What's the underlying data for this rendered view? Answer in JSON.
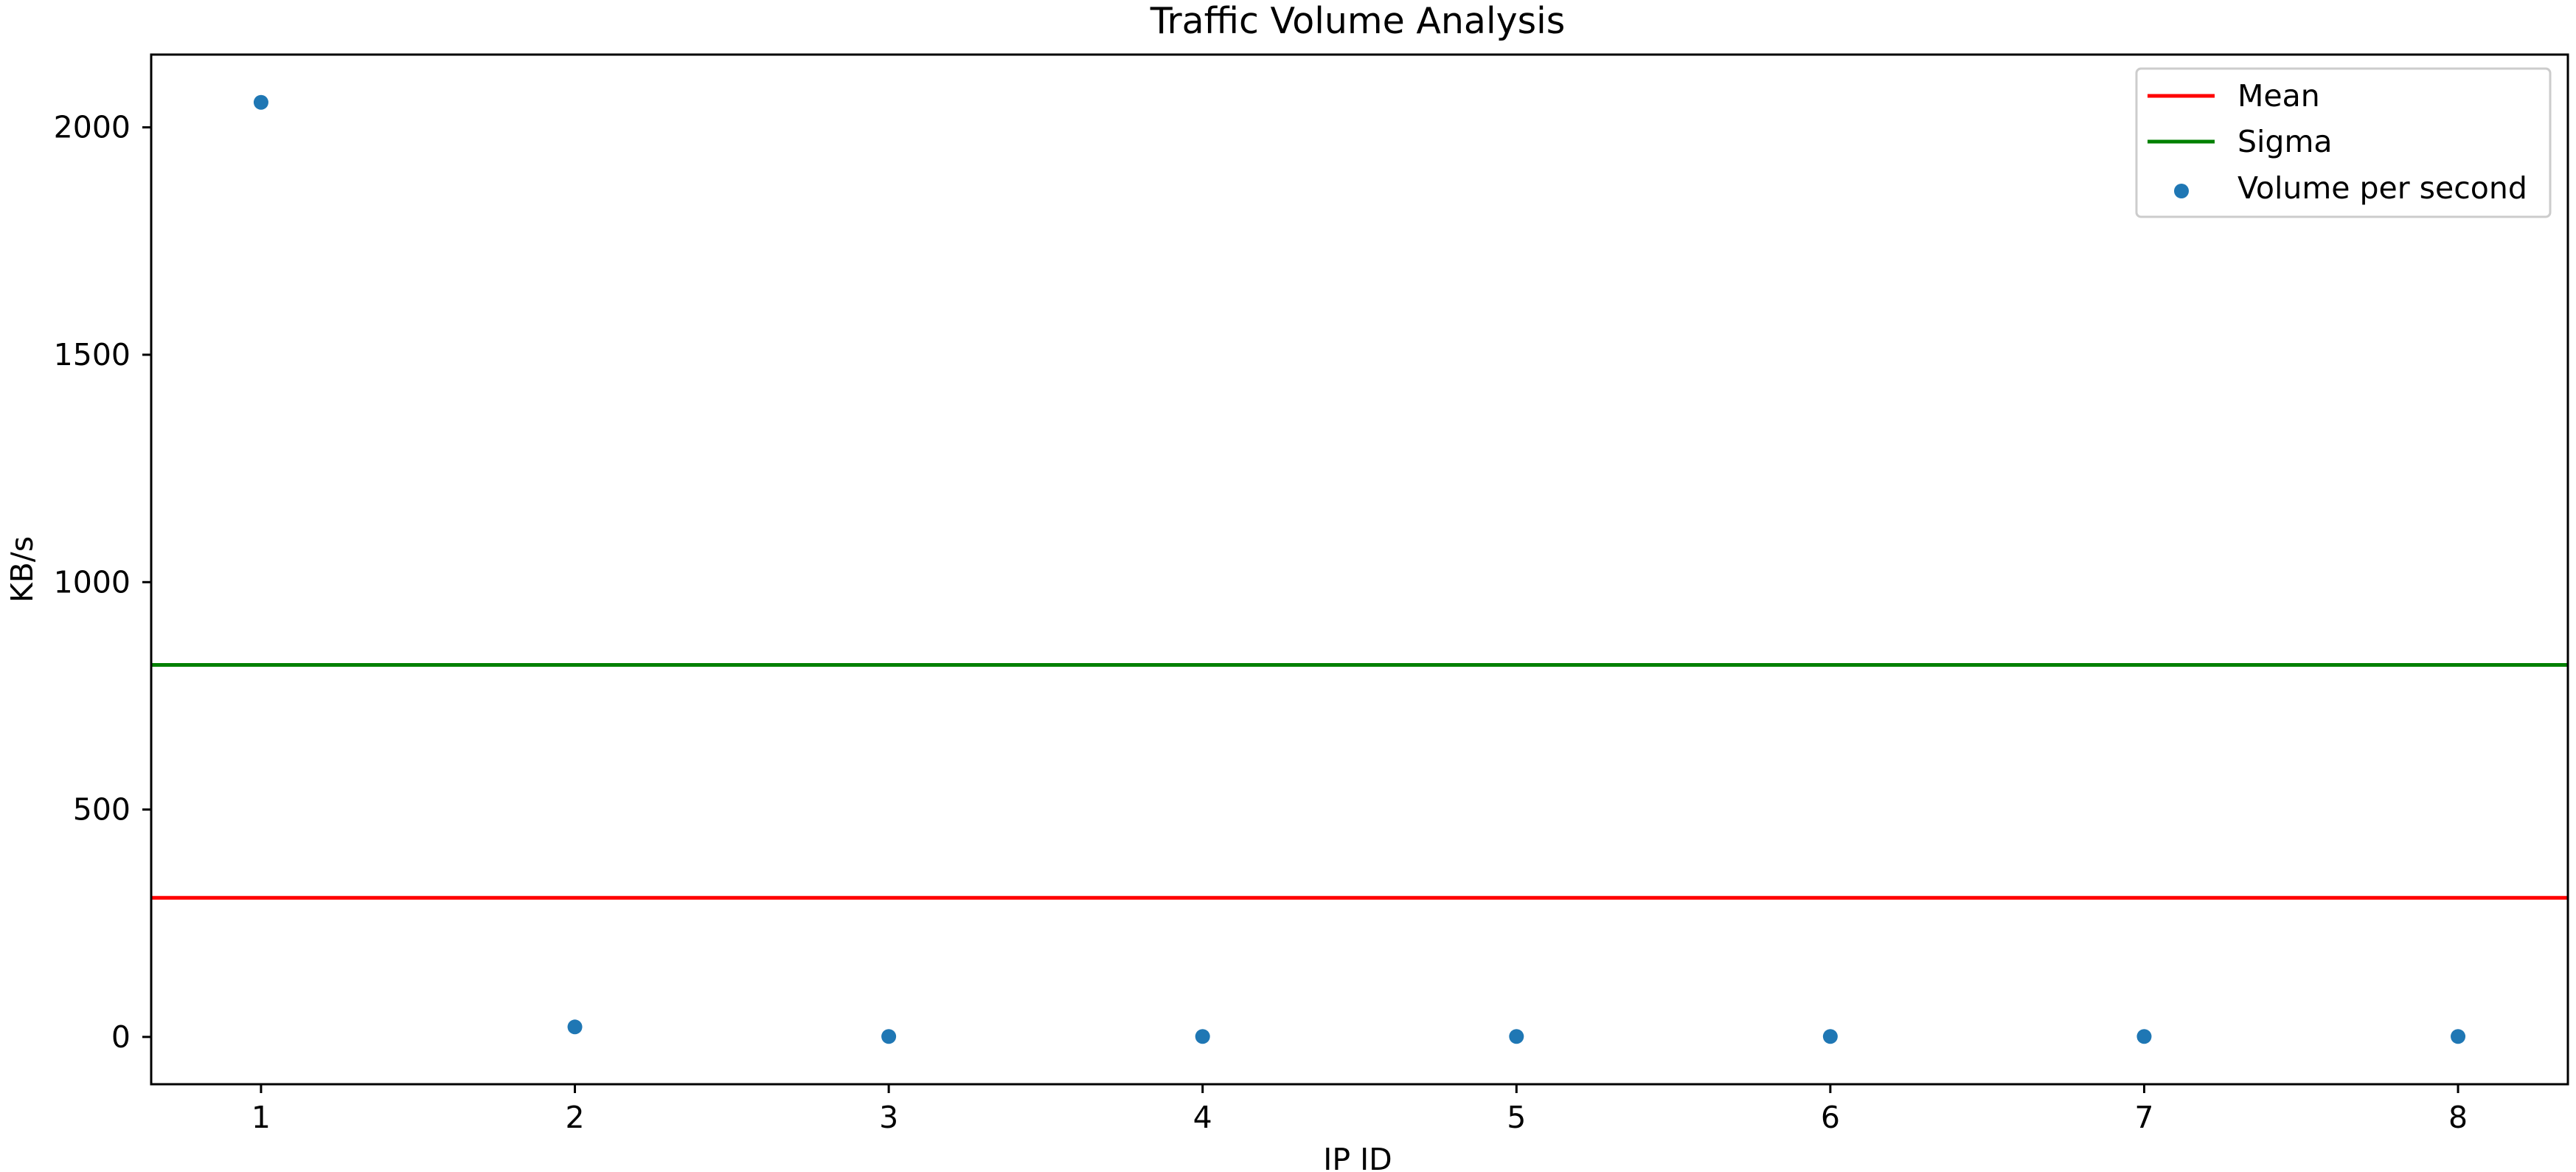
{
  "chart_data": {
    "type": "scatter",
    "title": "Traffic Volume Analysis",
    "xlabel": "IP ID",
    "ylabel": "KB/s",
    "xlim": [
      0.65,
      8.35
    ],
    "ylim": [
      -104,
      2160
    ],
    "xticks": [
      1,
      2,
      3,
      4,
      5,
      6,
      7,
      8
    ],
    "yticks": [
      0,
      500,
      1000,
      1500,
      2000
    ],
    "grid": false,
    "legend_position": "top-right",
    "series": [
      {
        "name": "Volume per second",
        "kind": "scatter",
        "color": "#1f77b4",
        "x": [
          1,
          2,
          3,
          4,
          5,
          6,
          7,
          8
        ],
        "y": [
          2055,
          22,
          1,
          1,
          1,
          1,
          1,
          1
        ]
      }
    ],
    "hlines": [
      {
        "name": "Mean",
        "value": 306,
        "color": "#ff0000"
      },
      {
        "name": "Sigma",
        "value": 818,
        "color": "#008000"
      }
    ],
    "legend": [
      "Mean",
      "Sigma",
      "Volume per second"
    ]
  }
}
